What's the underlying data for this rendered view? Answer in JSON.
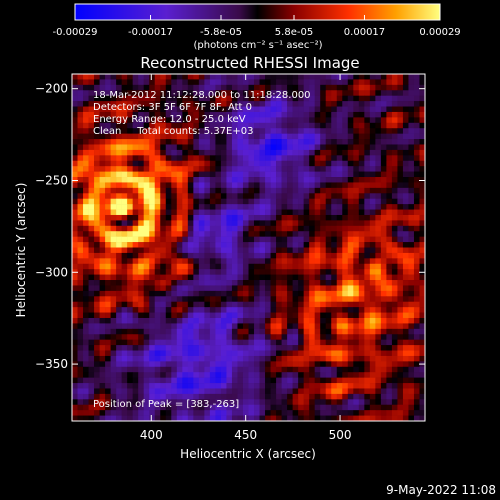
{
  "chart_data": {
    "type": "heatmap",
    "title": "Reconstructed RHESSI Image",
    "xlabel": "Heliocentric X (arcsec)",
    "ylabel": "Heliocentric Y (arcsec)",
    "xlim": [
      358,
      545
    ],
    "ylim": [
      -381,
      -192
    ],
    "xticks": [
      400,
      450,
      500
    ],
    "yticks": [
      -200,
      -250,
      -300,
      -350
    ],
    "colorbar": {
      "ticks": [
        "-0.00029",
        "-0.00017",
        "-5.8e-05",
        "5.8e-05",
        "0.00017",
        "0.00029"
      ],
      "tick_values": [
        -0.00029,
        -0.00017,
        -5.8e-05,
        5.8e-05,
        0.00017,
        0.00029
      ],
      "unit_label": "(photons cm⁻² s⁻¹ asec⁻²)",
      "range": [
        -0.00029,
        0.00029
      ]
    },
    "annotations": [
      "18-Mar-2012 11:12:28.000 to 11:18:28.000",
      "Detectors: 3F 5F 6F 7F 8F, Att 0",
      "Energy Range: 12.0 - 25.0 keV",
      "Clean     Total counts: 5.37E+03"
    ],
    "peak": "Position of Peak = [383,-263]",
    "peak_position": [
      383,
      -263
    ],
    "grid": false
  },
  "footer": {
    "timestamp": "9-May-2022 11:08"
  }
}
